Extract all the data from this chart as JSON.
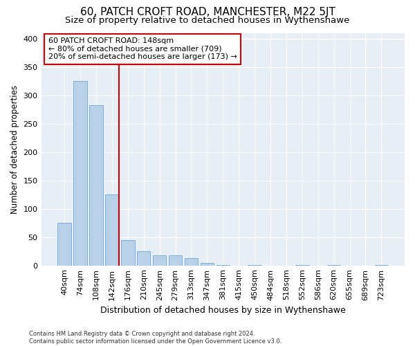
{
  "title": "60, PATCH CROFT ROAD, MANCHESTER, M22 5JT",
  "subtitle": "Size of property relative to detached houses in Wythenshawe",
  "xlabel": "Distribution of detached houses by size in Wythenshawe",
  "ylabel": "Number of detached properties",
  "bin_labels": [
    "40sqm",
    "74sqm",
    "108sqm",
    "142sqm",
    "176sqm",
    "210sqm",
    "245sqm",
    "279sqm",
    "313sqm",
    "347sqm",
    "381sqm",
    "415sqm",
    "450sqm",
    "484sqm",
    "518sqm",
    "552sqm",
    "586sqm",
    "620sqm",
    "655sqm",
    "689sqm",
    "723sqm"
  ],
  "bar_heights": [
    75,
    325,
    283,
    125,
    45,
    25,
    18,
    18,
    13,
    5,
    1,
    0,
    1,
    0,
    0,
    1,
    0,
    1,
    0,
    0,
    1
  ],
  "bar_color": "#b8d0e8",
  "bar_edge_color": "#7aafe0",
  "background_color": "#e8eef5",
  "vline_color": "#cc0000",
  "annotation_text": "60 PATCH CROFT ROAD: 148sqm\n← 80% of detached houses are smaller (709)\n20% of semi-detached houses are larger (173) →",
  "annotation_box_color": "#ffffff",
  "annotation_box_edge": "#cc0000",
  "footnote": "Contains HM Land Registry data © Crown copyright and database right 2024.\nContains public sector information licensed under the Open Government Licence v3.0.",
  "ylim": [
    0,
    410
  ],
  "yticks": [
    0,
    50,
    100,
    150,
    200,
    250,
    300,
    350,
    400
  ],
  "title_fontsize": 11,
  "subtitle_fontsize": 9.5,
  "ylabel_fontsize": 8.5,
  "xlabel_fontsize": 9,
  "tick_fontsize": 8,
  "annot_fontsize": 8,
  "footnote_fontsize": 6
}
